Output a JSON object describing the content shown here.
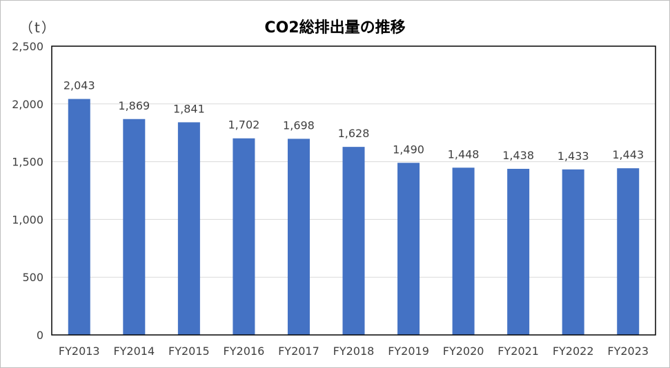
{
  "chart_data": {
    "type": "bar",
    "title": "CO2総排出量の推移",
    "unit_label": "（t）",
    "categories": [
      "FY2013",
      "FY2014",
      "FY2015",
      "FY2016",
      "FY2017",
      "FY2018",
      "FY2019",
      "FY2020",
      "FY2021",
      "FY2022",
      "FY2023"
    ],
    "values": [
      2043,
      1869,
      1841,
      1702,
      1698,
      1628,
      1490,
      1448,
      1438,
      1433,
      1443
    ],
    "value_labels": [
      "2,043",
      "1,869",
      "1,841",
      "1,702",
      "1,698",
      "1,628",
      "1,490",
      "1,448",
      "1,438",
      "1,433",
      "1,443"
    ],
    "ylim": [
      0,
      2500
    ],
    "yticks": [
      0,
      500,
      1000,
      1500,
      2000,
      2500
    ],
    "ytick_labels": [
      "0",
      "500",
      "1,000",
      "1,500",
      "2,000",
      "2,500"
    ],
    "grid": true,
    "bar_color": "#4472c4",
    "grid_color": "#d9d9d9"
  }
}
